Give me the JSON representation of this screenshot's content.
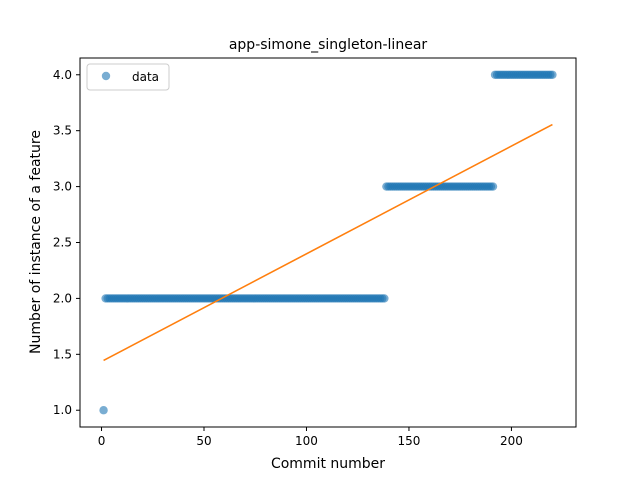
{
  "chart_data": {
    "type": "scatter",
    "title": "app-simone_singleton-linear",
    "xlabel": "Commit number",
    "ylabel": "Number of instance of a feature",
    "xlim": [
      -10.5,
      231.5
    ],
    "ylim": [
      0.85,
      4.15
    ],
    "xticks": [
      0,
      50,
      100,
      150,
      200
    ],
    "yticks": [
      1.0,
      1.5,
      2.0,
      2.5,
      3.0,
      3.5,
      4.0
    ],
    "xtick_labels": [
      "0",
      "50",
      "100",
      "150",
      "200"
    ],
    "ytick_labels": [
      "1.0",
      "1.5",
      "2.0",
      "2.5",
      "3.0",
      "3.5",
      "4.0"
    ],
    "grid": false,
    "legend": {
      "position": "top-left",
      "entries": [
        "data"
      ]
    },
    "series": [
      {
        "name": "data",
        "kind": "scatter",
        "color": "#1f77b4",
        "segments": [
          {
            "x_start": 1,
            "x_end": 1,
            "y": 1.0
          },
          {
            "x_start": 2,
            "x_end": 138,
            "y": 2.0
          },
          {
            "x_start": 139,
            "x_end": 191,
            "y": 3.0
          },
          {
            "x_start": 192,
            "x_end": 220,
            "y": 4.0
          }
        ]
      },
      {
        "kind": "line",
        "color": "#ff7f0e",
        "x": [
          1,
          220
        ],
        "y": [
          1.445,
          3.555
        ]
      }
    ]
  }
}
